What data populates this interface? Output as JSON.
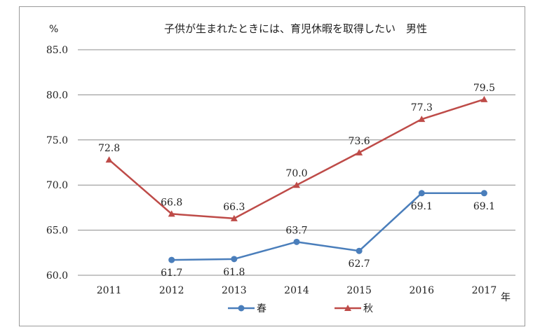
{
  "chart_data": {
    "type": "line",
    "title": "子供が生まれたときには、育児休暇を取得したい　男性",
    "ylabel": "%",
    "xlabel": "年",
    "ylim": [
      60,
      85
    ],
    "yticks": [
      "60.0",
      "65.0",
      "70.0",
      "75.0",
      "80.0",
      "85.0"
    ],
    "categories": [
      "2011",
      "2012",
      "2013",
      "2014",
      "2015",
      "2016",
      "2017"
    ],
    "grid": true,
    "legend_position": "bottom",
    "series": [
      {
        "name": "春",
        "color": "#4a7ebb",
        "marker": "circle",
        "values": [
          null,
          61.7,
          61.8,
          63.7,
          62.7,
          69.1,
          69.1
        ],
        "labels": [
          null,
          "61.7",
          "61.8",
          "63.7",
          "62.7",
          "69.1",
          "69.1"
        ],
        "label_pos": [
          null,
          "below",
          "below",
          "above",
          "below",
          "below",
          "below"
        ]
      },
      {
        "name": "秋",
        "color": "#be4b48",
        "marker": "triangle",
        "values": [
          72.8,
          66.8,
          66.3,
          70.0,
          73.6,
          77.3,
          79.5
        ],
        "labels": [
          "72.8",
          "66.8",
          "66.3",
          "70.0",
          "73.6",
          "77.3",
          "79.5"
        ],
        "label_pos": [
          "above",
          "above",
          "above",
          "above",
          "above",
          "above",
          "above"
        ]
      }
    ]
  }
}
